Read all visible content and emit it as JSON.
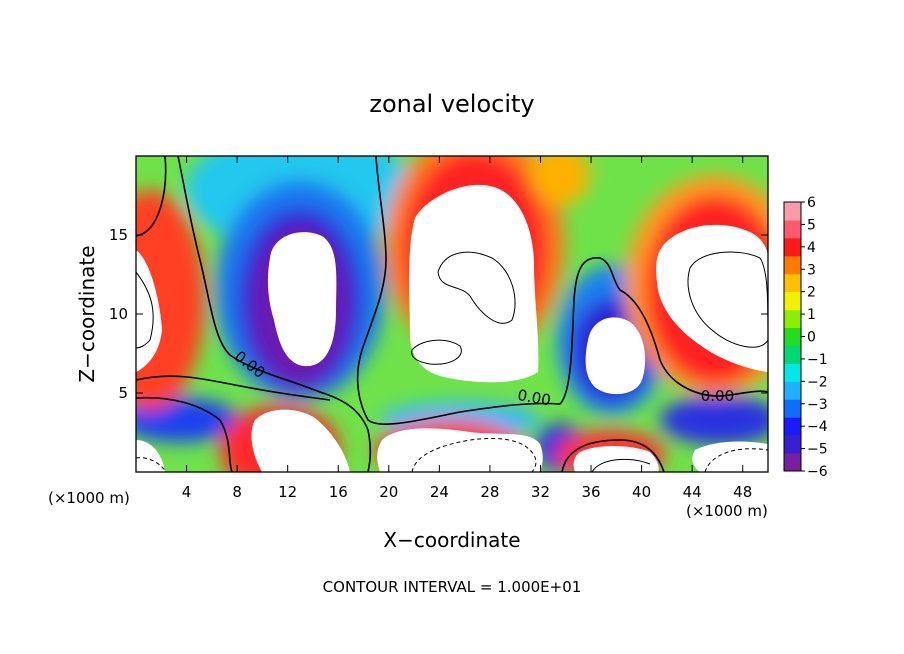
{
  "chart_data": {
    "type": "heatmap",
    "title": "zonal velocity",
    "xlabel": "X−coordinate",
    "ylabel": "Z−coordinate",
    "x_unit_left": "(×1000 m)",
    "x_unit_right": "(×1000 m)",
    "xlim": [
      0,
      50
    ],
    "ylim": [
      0,
      20
    ],
    "x_ticks": [
      4,
      8,
      12,
      16,
      20,
      24,
      28,
      32,
      36,
      40,
      44,
      48
    ],
    "y_ticks": [
      5,
      10,
      15
    ],
    "colorbar": {
      "range": [
        -6,
        6
      ],
      "ticks": [
        6,
        5,
        4,
        3,
        2,
        1,
        0,
        -1,
        -2,
        -3,
        -4,
        -5,
        -6
      ],
      "tick_labels": [
        "6",
        "5",
        "4",
        "3",
        "2",
        "1",
        "0",
        "−1",
        "−2",
        "−3",
        "−4",
        "−5",
        "−6"
      ],
      "colors": [
        "#7b1fa2",
        "#3a1fd0",
        "#1a1aff",
        "#0f6cff",
        "#20b0ff",
        "#00e8e8",
        "#00d873",
        "#22dd22",
        "#8bef00",
        "#f2f200",
        "#ffc000",
        "#ff7a00",
        "#ff1a1a",
        "#ff5a6e",
        "#ff9aa8"
      ]
    },
    "contour_labels": [
      {
        "text": "0.00",
        "x": 9.0,
        "z": 6.8,
        "angle": 38
      },
      {
        "text": "0.00",
        "x": 31.5,
        "z": 4.7,
        "angle": 10
      },
      {
        "text": "0.00",
        "x": 46.0,
        "z": 4.8,
        "angle": 0
      }
    ],
    "footer": "CONTOUR INTERVAL = 1.000E+01"
  }
}
